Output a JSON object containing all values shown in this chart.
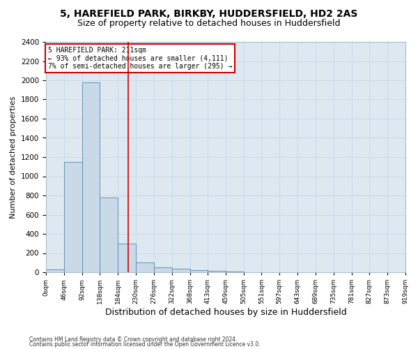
{
  "title1": "5, HAREFIELD PARK, BIRKBY, HUDDERSFIELD, HD2 2AS",
  "title2": "Size of property relative to detached houses in Huddersfield",
  "xlabel": "Distribution of detached houses by size in Huddersfield",
  "ylabel": "Number of detached properties",
  "footnote1": "Contains HM Land Registry data © Crown copyright and database right 2024.",
  "footnote2": "Contains public sector information licensed under the Open Government Licence v3.0.",
  "property_label": "5 HAREFIELD PARK: 211sqm",
  "annotation_line1": "← 93% of detached houses are smaller (4,111)",
  "annotation_line2": "7% of semi-detached houses are larger (295) →",
  "bin_edges": [
    0,
    46,
    92,
    138,
    184,
    230,
    276,
    322,
    368,
    413,
    459,
    505,
    551,
    597,
    643,
    689,
    735,
    781,
    827,
    873,
    919
  ],
  "bar_heights": [
    30,
    1150,
    1980,
    780,
    300,
    100,
    50,
    40,
    25,
    15,
    10,
    0,
    0,
    0,
    0,
    0,
    0,
    0,
    0,
    0
  ],
  "bar_color": "#c9d9e8",
  "bar_edge_color": "#5588aa",
  "vline_color": "#cc0000",
  "vline_x": 211,
  "annotation_box_color": "#cc0000",
  "ylim": [
    0,
    2400
  ],
  "yticks": [
    0,
    200,
    400,
    600,
    800,
    1000,
    1200,
    1400,
    1600,
    1800,
    2000,
    2200,
    2400
  ],
  "grid_color": "#c8d8e8",
  "background_color": "#dde8f0",
  "fig_background": "#ffffff",
  "title1_fontsize": 10,
  "title2_fontsize": 9,
  "xlabel_fontsize": 9,
  "ylabel_fontsize": 8
}
